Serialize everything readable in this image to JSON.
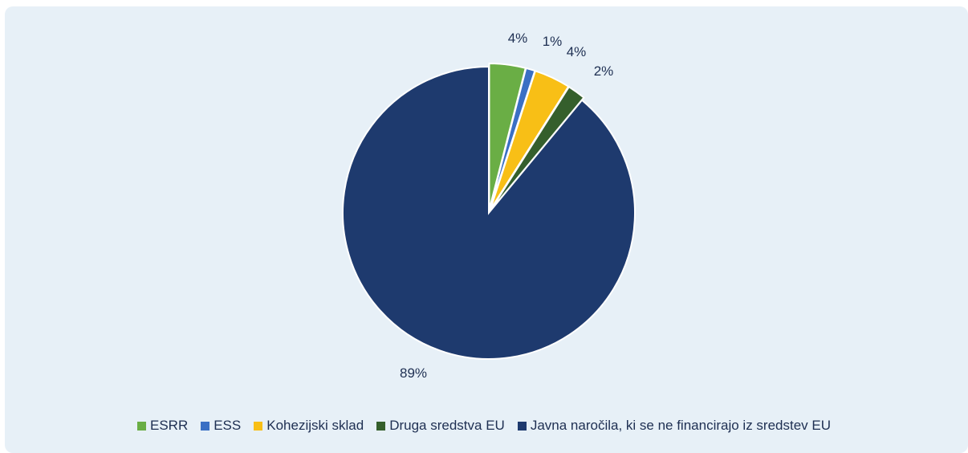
{
  "chart_data": {
    "type": "pie",
    "slices": [
      {
        "label": "ESRR",
        "value": 4,
        "value_label": "4%",
        "color": "#6aae45"
      },
      {
        "label": "ESS",
        "value": 1,
        "value_label": "1%",
        "color": "#3a6fc4"
      },
      {
        "label": "Kohezijski sklad",
        "value": 4,
        "value_label": "4%",
        "color": "#f8bf16"
      },
      {
        "label": "Druga sredstva EU",
        "value": 2,
        "value_label": "2%",
        "color": "#355f2c"
      },
      {
        "label": "Javna naročila, ki se ne financirajo iz sredstev EU",
        "value": 89,
        "value_label": "89%",
        "color": "#1e3a6e"
      }
    ],
    "start_angle_deg": 0,
    "direction": "clockwise",
    "exploded": true,
    "legend_position": "bottom"
  }
}
